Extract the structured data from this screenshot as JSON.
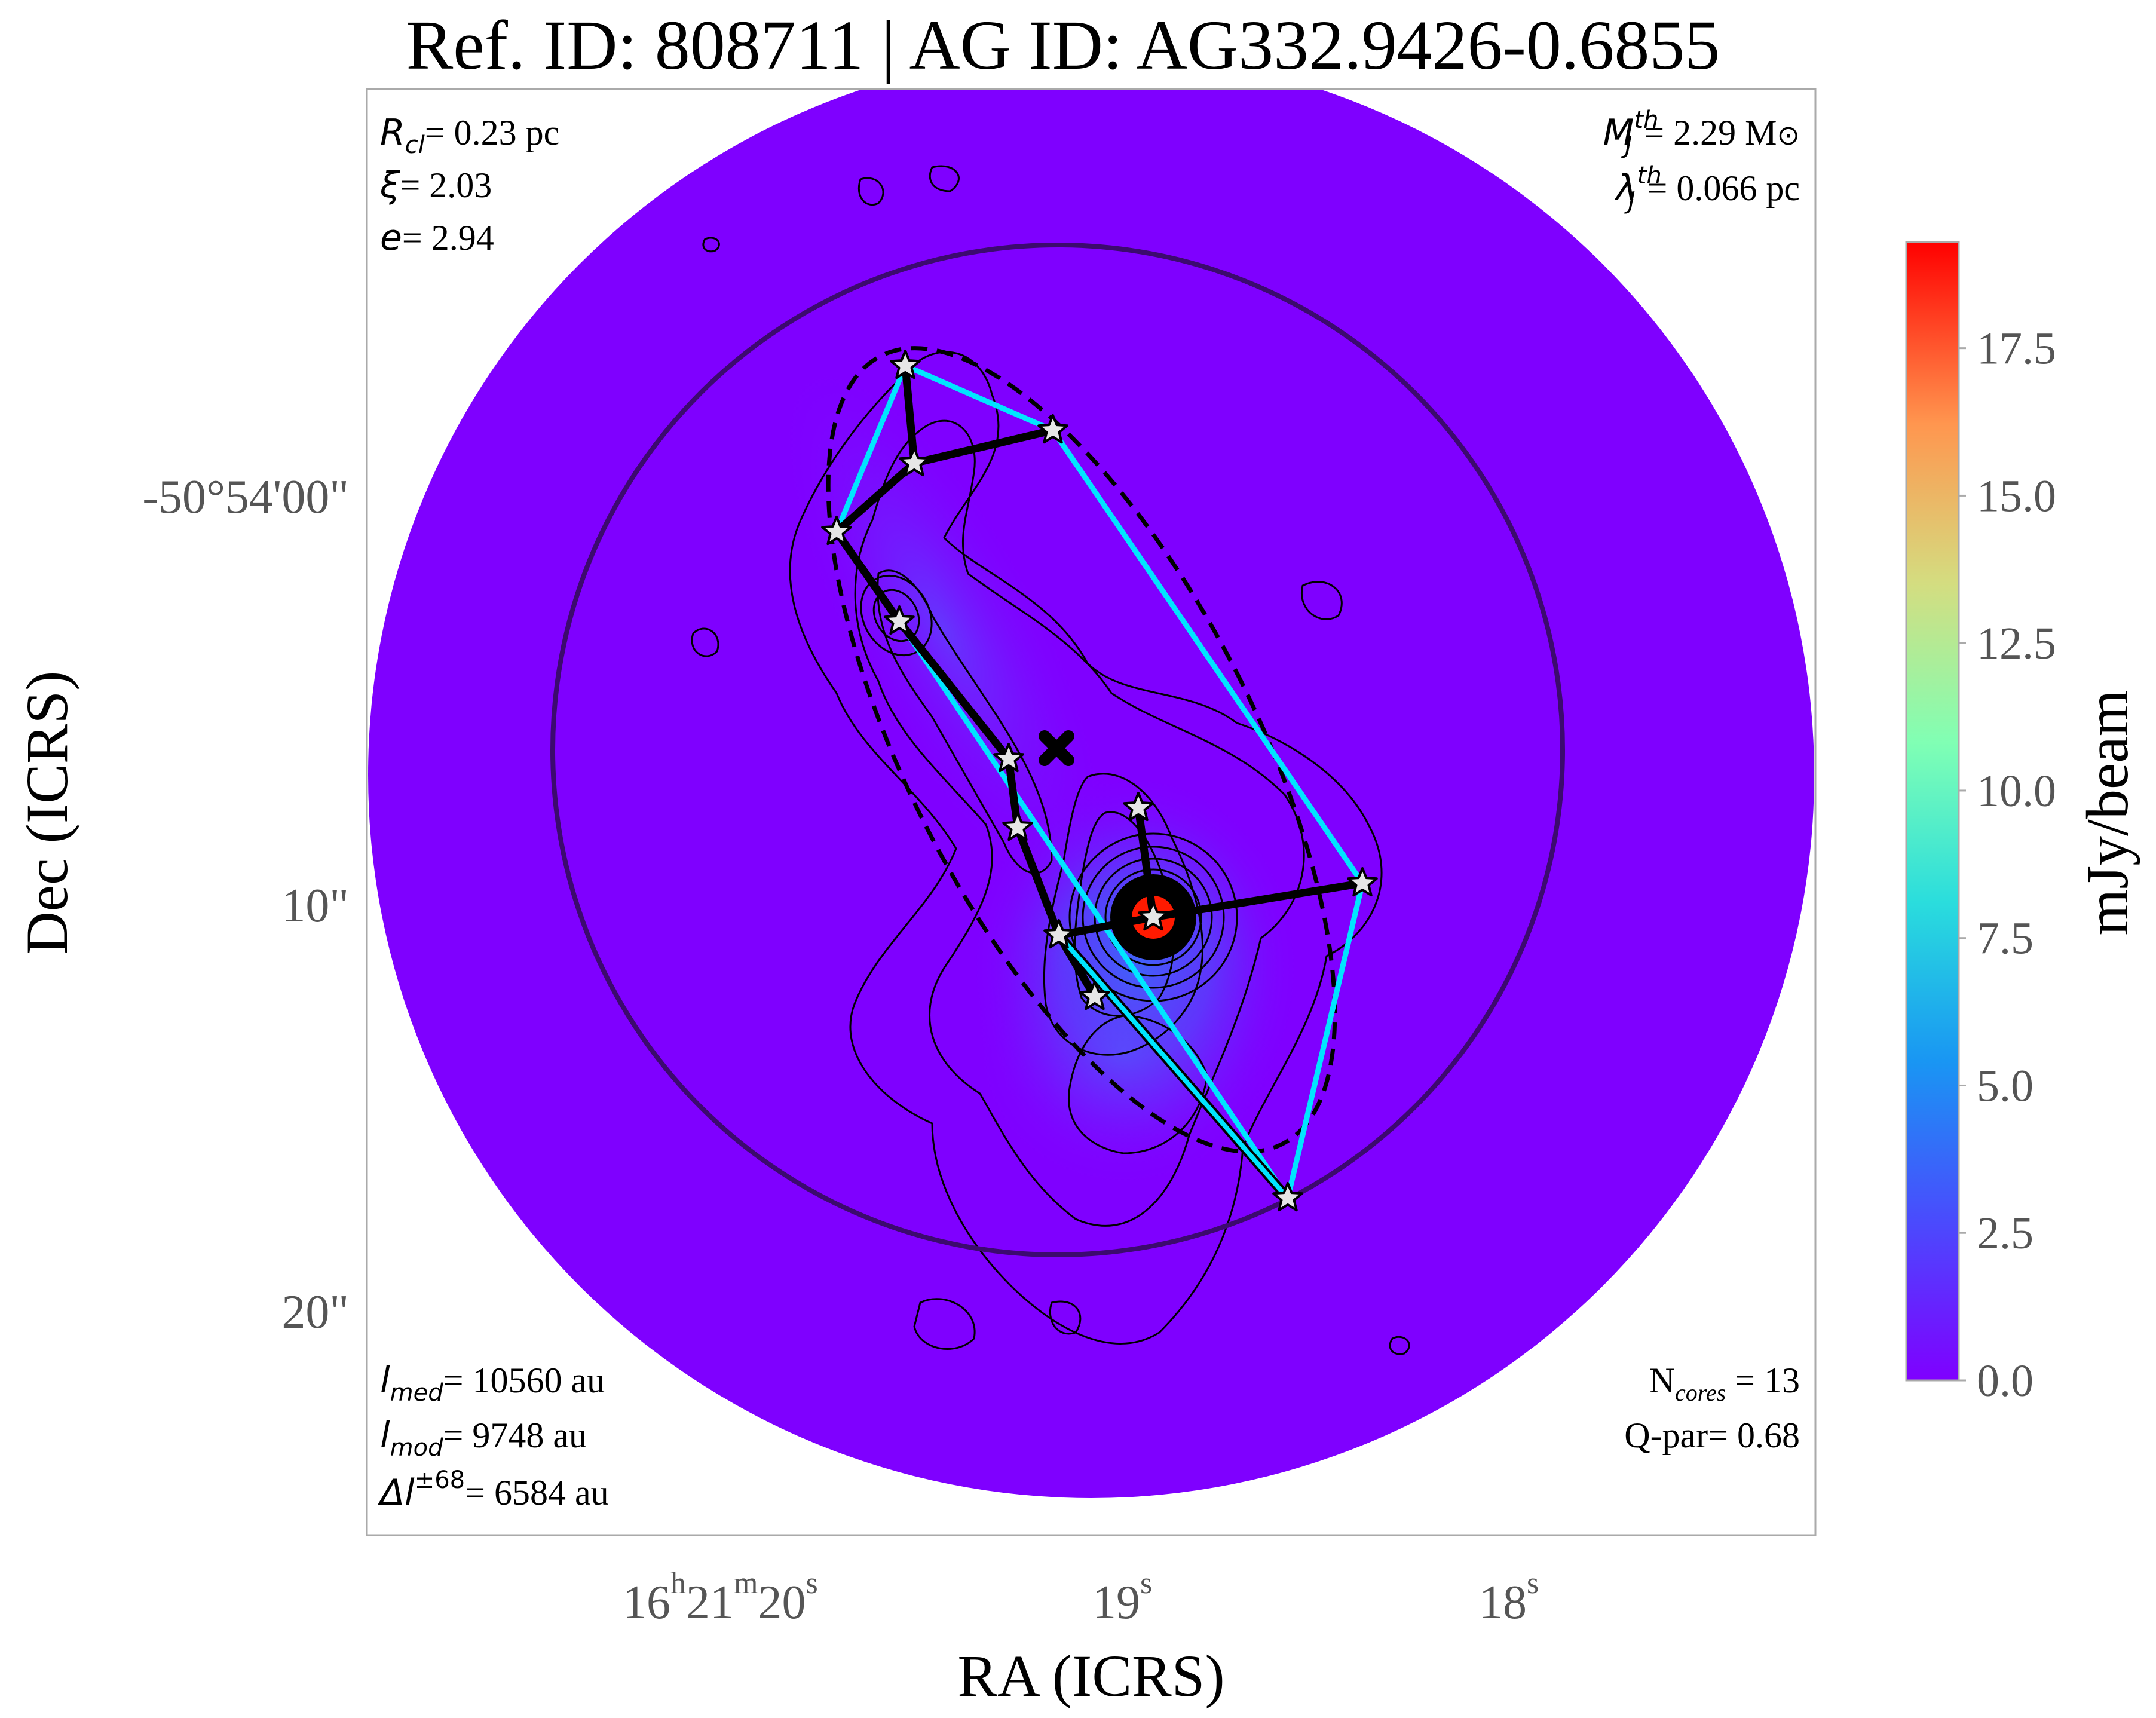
{
  "chart_data": {
    "type": "image",
    "title": "Ref. ID: 808711 | AG ID: AG332.9426-0.6855",
    "xlabel": "RA (ICRS)",
    "ylabel": "Dec (ICRS)",
    "x_ticks": [
      {
        "h": "16",
        "hs": "h",
        "m": "21",
        "ms": "m",
        "s": "20",
        "ss": "s"
      },
      {
        "s": "19",
        "ss": "s"
      },
      {
        "s": "18",
        "ss": "s"
      }
    ],
    "y_ticks": [
      "-50°54'00\"",
      "10\"",
      "20\""
    ],
    "colorbar": {
      "label": "mJy/beam",
      "range": [
        0.0,
        19.3
      ],
      "ticks": [
        "0.0",
        "2.5",
        "5.0",
        "7.5",
        "10.0",
        "12.5",
        "15.0",
        "17.5"
      ],
      "tick_values": [
        0.0,
        2.5,
        5.0,
        7.5,
        10.0,
        12.5,
        15.0,
        17.5
      ],
      "colormap": [
        "#7f00ff",
        "#4a4bfd",
        "#1996f3",
        "#2adddd",
        "#80ffb4",
        "#d4dd80",
        "#ff964f",
        "#ff0000"
      ]
    },
    "annotations": {
      "top_left": [
        {
          "sym": "R",
          "sub": "cl",
          "val": "= 0.23 pc"
        },
        {
          "sym": "ξ",
          "val": "= 2.03"
        },
        {
          "sym": "e",
          "val": "= 2.94"
        }
      ],
      "top_right": [
        {
          "sym": "M",
          "sub": "J",
          "sup": "th",
          "val": "= 2.29 M",
          "extra": "⊙"
        },
        {
          "sym": "λ",
          "sub": "J",
          "sup": "th",
          "val": "= 0.066 pc"
        }
      ],
      "bottom_left": [
        {
          "sym": "l",
          "sub": "med",
          "val": "= 10560 au"
        },
        {
          "sym": "l",
          "sub": "mod",
          "val": "= 9748 au"
        },
        {
          "sym": "Δl",
          "sup": "±68",
          "val": "= 6584 au"
        }
      ],
      "bottom_right": [
        {
          "sym": "N",
          "sub": "cores",
          "val": " = 13"
        },
        {
          "val": "Q-par= 0.68"
        }
      ]
    },
    "cores_note": "13 cores (stars); black lines: minimum spanning tree; cyan: convex hull; dashed: fitted ellipse; X: cluster centroid",
    "colors": {
      "background_map": "#7f00ff",
      "hull": "#00e5ff",
      "mst": "#000000",
      "circle": "#3c0a6e",
      "core_marker": "#e6e6e6",
      "peak": "#ff0000"
    }
  }
}
